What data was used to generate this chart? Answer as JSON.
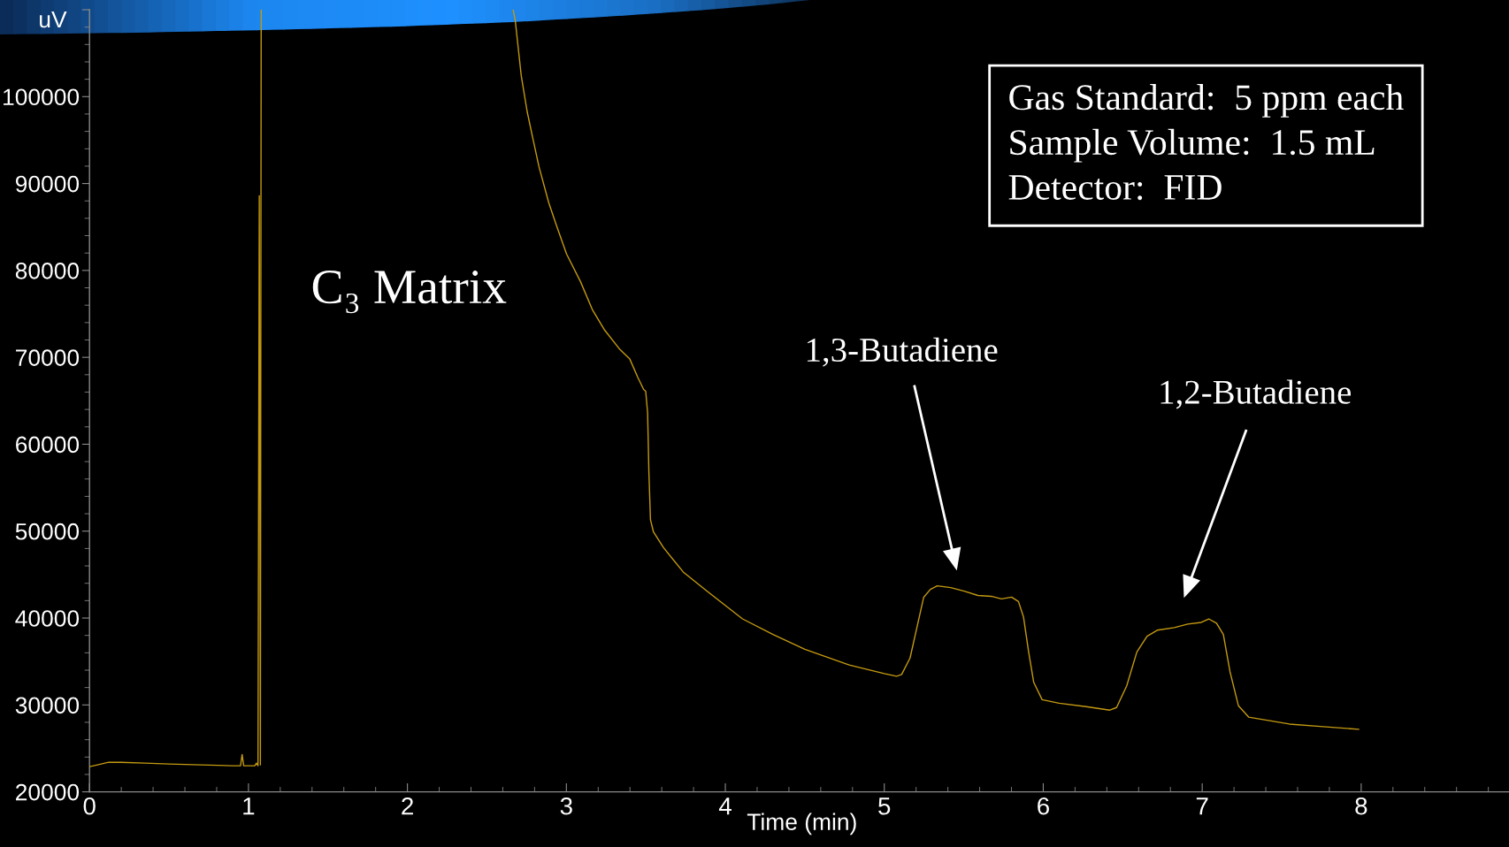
{
  "chart_data": {
    "type": "line",
    "xlabel": "Time (min)",
    "ylabel": "uV",
    "annotations": [
      "C₃ Matrix",
      "1,3-Butadiene",
      "1,2-Butadiene",
      "Gas Standard:  5 ppm each\nSample Volume:  1.5 mL\nDetector:  FID"
    ],
    "series": [
      {
        "color": "#c49a10",
        "line_style": "solid",
        "x": [
          0,
          0.05,
          0.12,
          0.2,
          0.35,
          0.5,
          0.7,
          0.9,
          0.95,
          0.96,
          0.97,
          1.0,
          1.04,
          1.05,
          1.06,
          1.068,
          1.075,
          1.08,
          1.6,
          2.665,
          2.678,
          2.716,
          2.753,
          2.79,
          2.828,
          2.889,
          2.939,
          3.001,
          3.089,
          3.163,
          3.238,
          3.337,
          3.399,
          3.449,
          3.486,
          3.499,
          3.511,
          3.519,
          3.529,
          3.548,
          3.611,
          3.735,
          3.884,
          4.108,
          4.3,
          4.5,
          4.779,
          5.0,
          5.077,
          5.109,
          5.162,
          5.205,
          5.248,
          5.29,
          5.333,
          5.418,
          5.503,
          5.589,
          5.673,
          5.737,
          5.801,
          5.844,
          5.876,
          5.908,
          5.94,
          5.993,
          6.1,
          6.27,
          6.419,
          6.461,
          6.525,
          6.589,
          6.653,
          6.717,
          6.824,
          6.909,
          6.994,
          7.041,
          7.09,
          7.133,
          7.175,
          7.228,
          7.292,
          7.548,
          7.761,
          7.985
        ],
        "values": [
          22900,
          23100,
          23400,
          23400,
          23300,
          23200,
          23100,
          23000,
          23000,
          24300,
          23000,
          23000,
          23000,
          23300,
          23000,
          88600,
          23100,
          110000,
          null,
          110000,
          108800,
          102400,
          98300,
          95100,
          91900,
          87800,
          85100,
          81900,
          78700,
          75500,
          73200,
          70900,
          69800,
          67700,
          66300,
          66100,
          63600,
          56800,
          51300,
          49900,
          48100,
          45300,
          43100,
          39900,
          38100,
          36400,
          34600,
          33600,
          33300,
          33500,
          35400,
          38900,
          42400,
          43300,
          43700,
          43500,
          43100,
          42600,
          42500,
          42200,
          42400,
          41900,
          40100,
          36100,
          32600,
          30600,
          30200,
          29800,
          29400,
          29700,
          32200,
          36100,
          37900,
          38600,
          38900,
          39300,
          39500,
          39900,
          39400,
          38100,
          33800,
          29900,
          28600,
          27800,
          27500,
          27200
        ]
      }
    ],
    "xlim": [
      0,
      8.93
    ],
    "xticks": [
      0,
      1,
      2,
      3,
      4,
      5,
      6,
      7,
      8
    ],
    "ylim": [
      20000,
      110000
    ],
    "yticks": [
      20000,
      30000,
      40000,
      50000,
      60000,
      70000,
      80000,
      90000,
      100000,
      {
        "value": 110000,
        "label": null
      }
    ],
    "grid": false
  }
}
